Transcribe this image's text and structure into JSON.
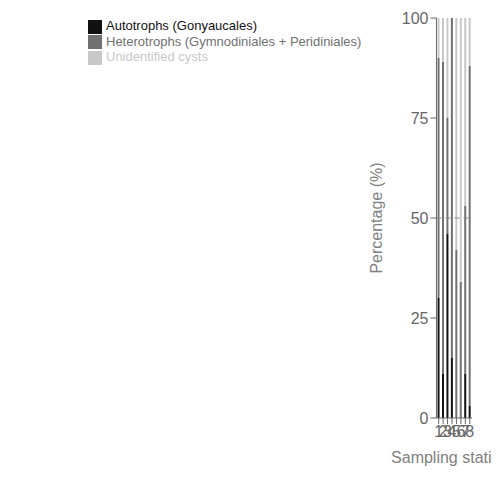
{
  "chart_data": {
    "type": "bar",
    "stacked": true,
    "categories": [
      "1",
      "2",
      "3",
      "4",
      "5",
      "6",
      "7",
      "8"
    ],
    "series": [
      {
        "name": "Autotrophs (Gonyaucales)",
        "color": "#111111",
        "values": [
          30,
          11,
          46,
          15,
          0,
          0,
          11,
          3
        ]
      },
      {
        "name": "Heterotrophs (Gymnodiniales + Peridiniales)",
        "color": "#707070",
        "values": [
          60,
          78,
          29,
          85,
          42,
          34,
          42,
          85
        ]
      },
      {
        "name": "Unidentified cysts",
        "color": "#c8c8c8",
        "values": [
          10,
          11,
          25,
          0,
          58,
          66,
          47,
          12
        ]
      }
    ],
    "xlabel": "Sampling stations",
    "ylabel": "Percentage (%)",
    "ylim": [
      0,
      100
    ],
    "yticks": [
      0,
      25,
      50,
      75,
      100
    ],
    "hline": 50,
    "grid": false,
    "legend": "top"
  }
}
